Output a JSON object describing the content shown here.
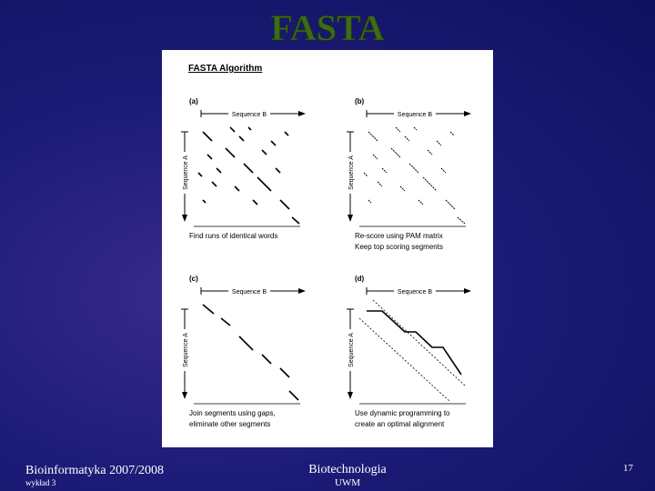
{
  "title": "FASTA",
  "figure": {
    "heading": "FASTA Algorithm",
    "panels": [
      {
        "label": "(a)",
        "top_axis": "Sequence B",
        "left_axis": "Sequence A",
        "caption": [
          "Find runs of identical words"
        ]
      },
      {
        "label": "(b)",
        "top_axis": "Sequence B",
        "left_axis": "Sequence A",
        "caption": [
          "Re-score using PAM matrix",
          "Keep top scoring segments"
        ]
      },
      {
        "label": "(c)",
        "top_axis": "Sequence B",
        "left_axis": "Sequence A",
        "caption": [
          "Join segments using gaps,",
          "eliminate other segments"
        ]
      },
      {
        "label": "(d)",
        "top_axis": "Sequence B",
        "left_axis": "Sequence A",
        "caption": [
          "Use dynamic programming to",
          "create an optimal alignment"
        ]
      }
    ]
  },
  "footer": {
    "left": "Bioinformatyka 2007/2008",
    "left_sub": "wykład 3",
    "center": "Biotechnologia",
    "center_sub": "UWM",
    "page": "17"
  }
}
